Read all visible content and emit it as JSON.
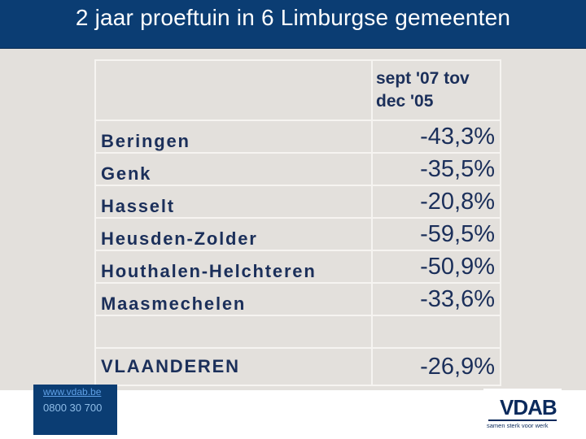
{
  "slide": {
    "title": "2 jaar proeftuin in 6 Limburgse gemeenten"
  },
  "table": {
    "header": "sept '07 tov dec '05",
    "rows": [
      {
        "name": "Beringen",
        "value": "-43,3%"
      },
      {
        "name": "Genk",
        "value": "-35,5%"
      },
      {
        "name": "Hasselt",
        "value": "-20,8%"
      },
      {
        "name": "Heusden-Zolder",
        "value": "-59,5%"
      },
      {
        "name": "Houthalen-Helchteren",
        "value": "-50,9%"
      },
      {
        "name": "Maasmechelen",
        "value": "-33,6%"
      }
    ],
    "total": {
      "name": "VLAANDEREN",
      "value": "-26,9%"
    }
  },
  "footer": {
    "url": "www.vdab.be",
    "phone": "0800 30 700",
    "logo_text": "VDAB",
    "logo_tagline": "samen sterk voor werk"
  },
  "colors": {
    "title_bar": "#0b3d73",
    "content_bg": "#e3e0dc",
    "text_navy": "#1b2f5a"
  }
}
